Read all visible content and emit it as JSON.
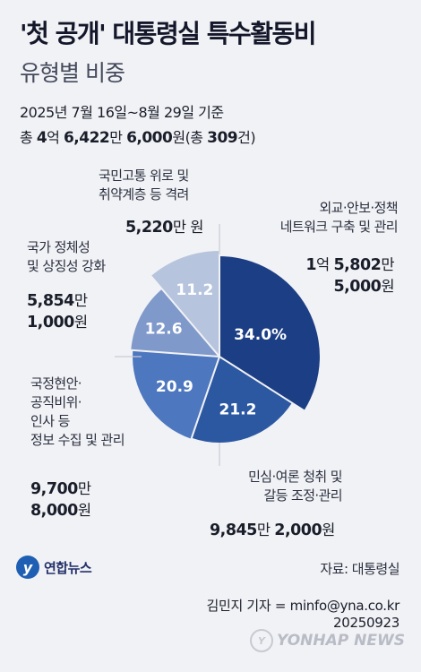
{
  "header": {
    "title": "'첫 공개' 대통령실 특수활동비",
    "subtitle": "유형별 비중",
    "date_range": "2025년 7월 16일~8월 29일 기준",
    "total_prefix": "총 ",
    "total_n1": "4",
    "total_u1": "억 ",
    "total_n2": "6,422",
    "total_u2": "만 ",
    "total_n3": "6,000",
    "total_u3": "원(총 ",
    "total_n4": "309",
    "total_u4": "건)"
  },
  "chart_data": {
    "type": "pie",
    "title": "'첫 공개' 대통령실 특수활동비",
    "subtitle": "유형별 비중",
    "unit": "%",
    "start_angle_deg": 0,
    "direction": "clockwise",
    "colors": {
      "text_light": "#ffffff"
    },
    "slices": [
      {
        "label": "외교·안보·정책 네트워크 구축 및 관리",
        "value": 34.0,
        "display": "34.0%",
        "color": "#1c3e84",
        "label_lines": [
          "외교·안보·정책",
          "네트워크 구축 및 관리"
        ],
        "amount_num1": "1",
        "amount_unit1": "억 ",
        "amount_num2": "5,802",
        "amount_unit2": "만",
        "amount_num3": "5,000",
        "amount_unit3": "원"
      },
      {
        "label": "민심·여론 청취 및 갈등 조정·관리",
        "value": 21.2,
        "display": "21.2",
        "color": "#2c58a2",
        "label_lines": [
          "민심·여론 청취 및",
          "갈등 조정·관리"
        ],
        "amount_num1": "",
        "amount_unit1": "",
        "amount_num2": "9,845",
        "amount_unit2": "만 ",
        "amount_num3": "2,000",
        "amount_unit3": "원"
      },
      {
        "label": "국정현안·공직비위·인사 등 정보 수집 및 관리",
        "value": 20.9,
        "display": "20.9",
        "color": "#4d77be",
        "label_lines": [
          "국정현안·",
          "공직비위·",
          "인사 등",
          "정보 수집 및 관리"
        ],
        "amount_num1": "",
        "amount_unit1": "",
        "amount_num2": "9,700",
        "amount_unit2": "만",
        "amount_num3": "8,000",
        "amount_unit3": "원"
      },
      {
        "label": "국가 정체성 및 상징성 강화",
        "value": 12.6,
        "display": "12.6",
        "color": "#8099cb",
        "label_lines": [
          "국가 정체성",
          "및 상징성 강화"
        ],
        "amount_num1": "",
        "amount_unit1": "",
        "amount_num2": "5,854",
        "amount_unit2": "만",
        "amount_num3": "1,000",
        "amount_unit3": "원"
      },
      {
        "label": "국민고통 위로 및 취약계층 등 격려",
        "value": 11.2,
        "display": "11.2",
        "color": "#b6c4de",
        "label_lines": [
          "국민고통 위로 및",
          "취약계층 등 격려"
        ],
        "amount_num1": "",
        "amount_unit1": "",
        "amount_num2": "5,220",
        "amount_unit2": "만 ",
        "amount_num3": "",
        "amount_unit3": "원"
      }
    ]
  },
  "footer": {
    "logo_text": "연합뉴스",
    "source": "자료: 대통령실",
    "credit_line": "김민지 기자 = minfo@yna.co.kr",
    "date_code": "20250923",
    "watermark": "YONHAP NEWS"
  }
}
